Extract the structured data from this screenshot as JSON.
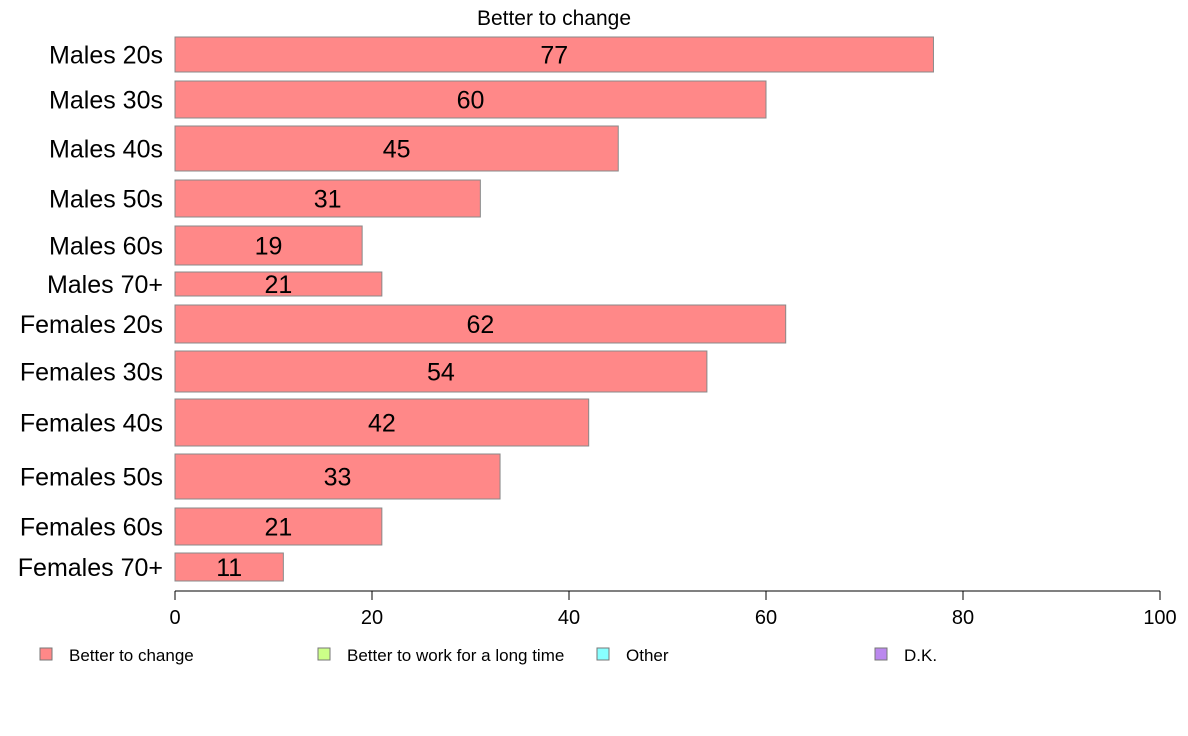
{
  "chart_data": {
    "type": "bar",
    "orientation": "horizontal",
    "title": "Better to change",
    "categories": [
      "Males 20s",
      "Males 30s",
      "Males 40s",
      "Males 50s",
      "Males 60s",
      "Males 70+",
      "Females 20s",
      "Females 30s",
      "Females 40s",
      "Females 50s",
      "Females 60s",
      "Females 70+"
    ],
    "series": [
      {
        "name": "Better to change",
        "color": "#ff8888",
        "values": [
          77,
          60,
          45,
          31,
          19,
          21,
          62,
          54,
          42,
          33,
          21,
          11
        ]
      }
    ],
    "xlim": [
      0,
      100
    ],
    "xticks": [
      "0",
      "20",
      "40",
      "60",
      "80",
      "100"
    ],
    "grid": false,
    "legend_position": "bottom",
    "legend": [
      {
        "label": "Better to change",
        "color": "#ff8888"
      },
      {
        "label": "Better to work for a long time",
        "color": "#ccff88"
      },
      {
        "label": "Other",
        "color": "#88ffff"
      },
      {
        "label": "D.K.",
        "color": "#bb88ee"
      }
    ]
  }
}
